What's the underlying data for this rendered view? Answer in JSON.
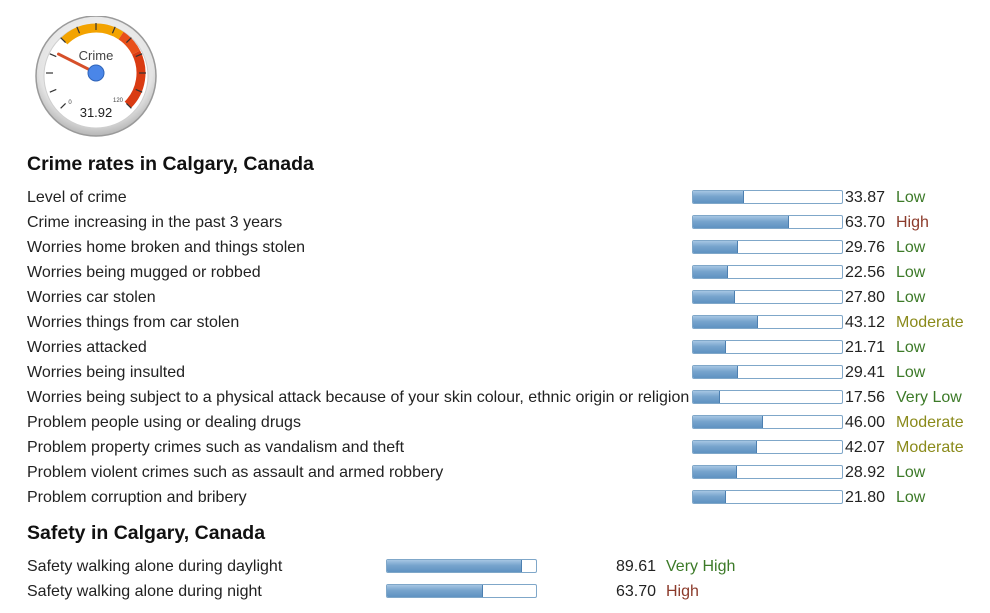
{
  "gauge": {
    "label": "Crime",
    "value": "31.92",
    "min_label": "0",
    "max_label": "120",
    "level": 31.92,
    "max": 120
  },
  "crime": {
    "title": "Crime rates in Calgary, Canada",
    "rows": [
      {
        "label": "Level of crime",
        "value": "33.87",
        "rating": "Low",
        "cls": "c-low",
        "level": 33.87
      },
      {
        "label": "Crime increasing in the past 3 years",
        "value": "63.70",
        "rating": "High",
        "cls": "c-high",
        "level": 63.7
      },
      {
        "label": "Worries home broken and things stolen",
        "value": "29.76",
        "rating": "Low",
        "cls": "c-low",
        "level": 29.76
      },
      {
        "label": "Worries being mugged or robbed",
        "value": "22.56",
        "rating": "Low",
        "cls": "c-low",
        "level": 22.56
      },
      {
        "label": "Worries car stolen",
        "value": "27.80",
        "rating": "Low",
        "cls": "c-low",
        "level": 27.8
      },
      {
        "label": "Worries things from car stolen",
        "value": "43.12",
        "rating": "Moderate",
        "cls": "c-moderate",
        "level": 43.12
      },
      {
        "label": "Worries attacked",
        "value": "21.71",
        "rating": "Low",
        "cls": "c-low",
        "level": 21.71
      },
      {
        "label": "Worries being insulted",
        "value": "29.41",
        "rating": "Low",
        "cls": "c-low",
        "level": 29.41
      },
      {
        "label": "Worries being subject to a physical attack because of your skin colour, ethnic origin or religion",
        "value": "17.56",
        "rating": "Very Low",
        "cls": "c-verylow",
        "level": 17.56
      },
      {
        "label": "Problem people using or dealing drugs",
        "value": "46.00",
        "rating": "Moderate",
        "cls": "c-moderate",
        "level": 46.0
      },
      {
        "label": "Problem property crimes such as vandalism and theft",
        "value": "42.07",
        "rating": "Moderate",
        "cls": "c-moderate",
        "level": 42.07
      },
      {
        "label": "Problem violent crimes such as assault and armed robbery",
        "value": "28.92",
        "rating": "Low",
        "cls": "c-low",
        "level": 28.92
      },
      {
        "label": "Problem corruption and bribery",
        "value": "21.80",
        "rating": "Low",
        "cls": "c-low",
        "level": 21.8
      }
    ]
  },
  "safety": {
    "title": "Safety in Calgary, Canada",
    "rows": [
      {
        "label": "Safety walking alone during daylight",
        "value": "89.61",
        "rating": "Very High",
        "cls": "c-veryhigh",
        "level": 89.61
      },
      {
        "label": "Safety walking alone during night",
        "value": "63.70",
        "rating": "High",
        "cls": "c-high",
        "level": 63.7
      }
    ]
  },
  "colors": {
    "low": "#3c7a28",
    "high": "#8b3a2a",
    "moderate": "#8a8a1a",
    "bar": "#6f9fcb"
  }
}
